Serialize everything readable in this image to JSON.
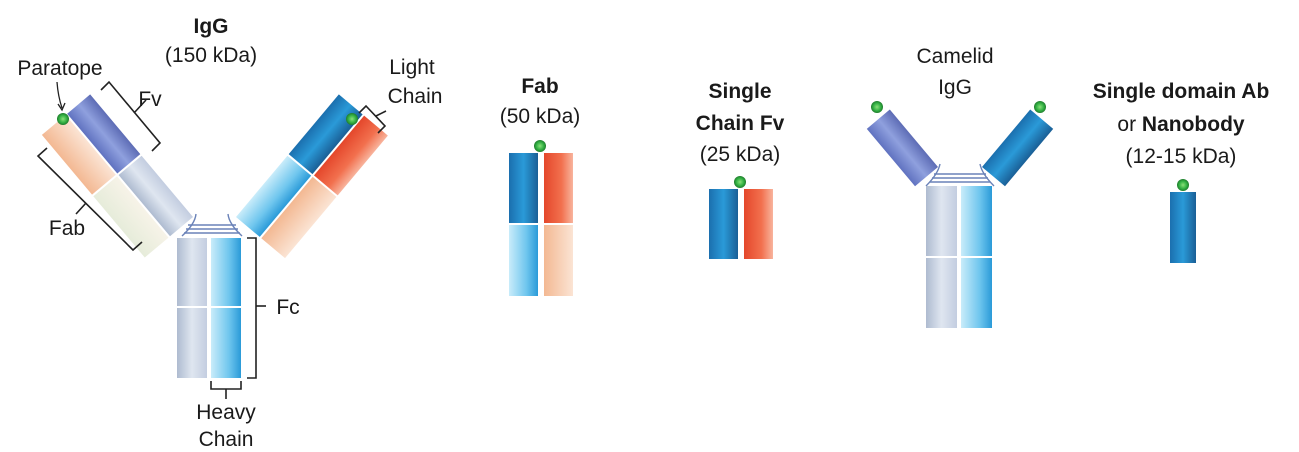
{
  "igg": {
    "title": "IgG",
    "mass": "(150 kDa)",
    "paratope": "Paratope",
    "fv": "Fv",
    "fab": "Fab",
    "light_chain_1": "Light",
    "light_chain_2": "Chain",
    "fc": "Fc",
    "heavy_chain_1": "Heavy",
    "heavy_chain_2": "Chain"
  },
  "fab": {
    "title": "Fab",
    "mass": "(50 kDa)"
  },
  "scfv": {
    "title_1": "Single",
    "title_2": "Chain Fv",
    "mass": "(25 kDa)"
  },
  "camelid": {
    "title_1": "Camelid",
    "title_2": "IgG"
  },
  "nanobody": {
    "title_1": "Single domain Ab",
    "title_2_prefix": "or",
    "title_2_bold": "Nanobody",
    "mass": "(12-15 kDa)"
  },
  "colors": {
    "heavy_blue": "#2a8fcf",
    "heavy_blue_light": "#9fd8f2",
    "light_red": "#ee5a3a",
    "light_peach": "#f5c7a8",
    "grey_blue": "#c7d2e2",
    "purple_blue": "#7c8fd2",
    "paratope_green": "#3cb84a",
    "bracket": "#222222"
  }
}
